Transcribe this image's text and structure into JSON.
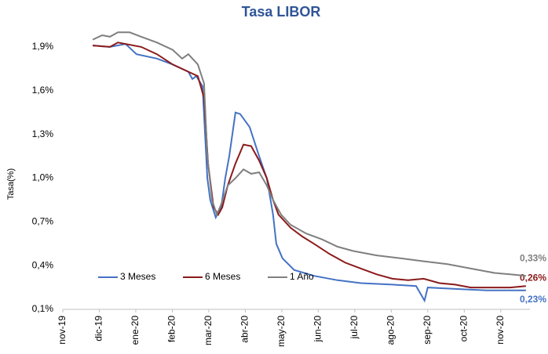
{
  "chart_data": {
    "type": "line",
    "title": "Tasa LIBOR",
    "ylabel": "Tasa(%)",
    "xlim": [
      0,
      12.8
    ],
    "xticks": [
      {
        "value": 0,
        "label": "nov-19"
      },
      {
        "value": 1,
        "label": "dic-19"
      },
      {
        "value": 2,
        "label": "ene-20"
      },
      {
        "value": 3,
        "label": "feb-20"
      },
      {
        "value": 4,
        "label": "mar-20"
      },
      {
        "value": 5,
        "label": "abr-20"
      },
      {
        "value": 6,
        "label": "may-20"
      },
      {
        "value": 7,
        "label": "jun-20"
      },
      {
        "value": 8,
        "label": "jul-20"
      },
      {
        "value": 9,
        "label": "ago-20"
      },
      {
        "value": 10,
        "label": "sep-20"
      },
      {
        "value": 11,
        "label": "oct-20"
      },
      {
        "value": 12,
        "label": "nov-20"
      }
    ],
    "ylim": [
      0.1,
      2.05
    ],
    "yticks": [
      {
        "value": 0.1,
        "label": "0,1%"
      },
      {
        "value": 0.4,
        "label": "0,4%"
      },
      {
        "value": 0.7,
        "label": "0,7%"
      },
      {
        "value": 1.0,
        "label": "1,0%"
      },
      {
        "value": 1.3,
        "label": "1,3%"
      },
      {
        "value": 1.6,
        "label": "1,6%"
      },
      {
        "value": 1.9,
        "label": "1,9%"
      }
    ],
    "grid": false,
    "legend": "lower left",
    "series": [
      {
        "name": "3 Meses",
        "color": "#4472c4",
        "end_label": "0,23%",
        "x": [
          0.82,
          1.29,
          1.72,
          2.02,
          2.58,
          3.01,
          3.44,
          3.55,
          3.66,
          3.83,
          3.96,
          4.04,
          4.19,
          4.34,
          4.45,
          4.56,
          4.73,
          4.86,
          5.12,
          5.38,
          5.59,
          5.76,
          5.85,
          6.02,
          6.34,
          6.88,
          7.53,
          8.17,
          9.03,
          9.68,
          9.91,
          10.0,
          10.75,
          11.61,
          12.47,
          12.69
        ],
        "values": [
          1.91,
          1.9,
          1.92,
          1.85,
          1.82,
          1.78,
          1.73,
          1.68,
          1.7,
          1.63,
          1.0,
          0.85,
          0.73,
          0.8,
          1.0,
          1.15,
          1.45,
          1.44,
          1.35,
          1.15,
          1.0,
          0.75,
          0.55,
          0.45,
          0.37,
          0.33,
          0.3,
          0.28,
          0.27,
          0.26,
          0.16,
          0.25,
          0.24,
          0.23,
          0.23,
          0.23
        ]
      },
      {
        "name": "6 Meses",
        "color": "#8b1a1a",
        "end_label": "0,26%",
        "x": [
          0.82,
          1.29,
          1.51,
          2.15,
          2.58,
          3.01,
          3.44,
          3.7,
          3.87,
          3.98,
          4.13,
          4.26,
          4.37,
          4.52,
          4.73,
          4.95,
          5.16,
          5.38,
          5.59,
          5.76,
          5.91,
          6.24,
          6.56,
          6.88,
          7.31,
          7.74,
          8.17,
          8.6,
          9.03,
          9.46,
          9.89,
          10.32,
          10.75,
          11.18,
          11.83,
          12.26,
          12.69
        ],
        "values": [
          1.91,
          1.9,
          1.93,
          1.9,
          1.85,
          1.78,
          1.73,
          1.7,
          1.55,
          1.1,
          0.8,
          0.75,
          0.8,
          0.95,
          1.1,
          1.23,
          1.22,
          1.12,
          1.0,
          0.85,
          0.75,
          0.66,
          0.6,
          0.55,
          0.48,
          0.42,
          0.38,
          0.34,
          0.31,
          0.3,
          0.31,
          0.28,
          0.27,
          0.25,
          0.25,
          0.25,
          0.26
        ]
      },
      {
        "name": "1 Año",
        "color": "#7f7f7f",
        "end_label": "0,33%",
        "x": [
          0.82,
          1.08,
          1.29,
          1.51,
          1.83,
          2.15,
          2.58,
          3.01,
          3.27,
          3.44,
          3.7,
          3.87,
          3.96,
          4.09,
          4.22,
          4.34,
          4.52,
          4.73,
          4.95,
          5.16,
          5.38,
          5.59,
          5.76,
          5.98,
          6.24,
          6.67,
          7.1,
          7.53,
          7.96,
          8.6,
          9.25,
          9.89,
          10.54,
          11.18,
          11.83,
          12.26,
          12.69
        ],
        "values": [
          1.95,
          1.98,
          1.97,
          2.0,
          2.0,
          1.97,
          1.93,
          1.88,
          1.82,
          1.85,
          1.78,
          1.65,
          1.15,
          0.85,
          0.75,
          0.82,
          0.95,
          1.0,
          1.06,
          1.03,
          1.04,
          0.95,
          0.85,
          0.75,
          0.68,
          0.62,
          0.58,
          0.53,
          0.5,
          0.47,
          0.45,
          0.43,
          0.41,
          0.38,
          0.35,
          0.34,
          0.33
        ]
      }
    ]
  }
}
